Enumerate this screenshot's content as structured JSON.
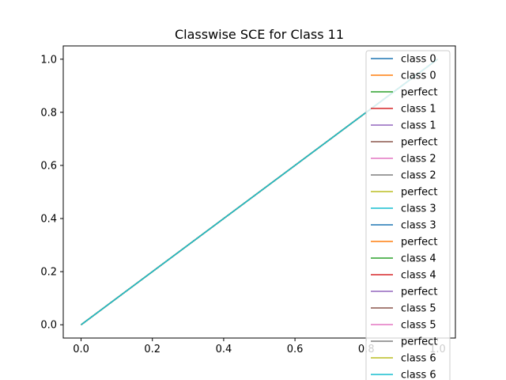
{
  "chart_data": {
    "type": "line",
    "title": "Classwise SCE for Class 11",
    "xlabel": "",
    "ylabel": "",
    "xlim": [
      -0.05,
      1.05
    ],
    "ylim": [
      -0.05,
      1.05
    ],
    "x_ticks": [
      0.0,
      0.2,
      0.4,
      0.6,
      0.8,
      1.0
    ],
    "x_tick_labels": [
      "0.0",
      "0.2",
      "0.4",
      "0.6",
      "0.8",
      "1.0"
    ],
    "y_ticks": [
      0.0,
      0.2,
      0.4,
      0.6,
      0.8,
      1.0
    ],
    "y_tick_labels": [
      "0.0",
      "0.2",
      "0.4",
      "0.6",
      "0.8",
      "1.0"
    ],
    "grid": false,
    "legend_position": "top-right",
    "series": [
      {
        "name": "class 0",
        "color": "#1f77b4",
        "x": [
          0,
          1
        ],
        "y": [
          0,
          1
        ]
      },
      {
        "name": "class 0",
        "color": "#ff7f0e",
        "x": [
          0,
          1
        ],
        "y": [
          0,
          1
        ]
      },
      {
        "name": "perfect",
        "color": "#2ca02c",
        "x": [
          0,
          1
        ],
        "y": [
          0,
          1
        ]
      },
      {
        "name": "class 1",
        "color": "#d62728",
        "x": [
          0,
          1
        ],
        "y": [
          0,
          1
        ]
      },
      {
        "name": "class 1",
        "color": "#9467bd",
        "x": [
          0,
          1
        ],
        "y": [
          0,
          1
        ]
      },
      {
        "name": "perfect",
        "color": "#8c564b",
        "x": [
          0,
          1
        ],
        "y": [
          0,
          1
        ]
      },
      {
        "name": "class 2",
        "color": "#e377c2",
        "x": [
          0,
          1
        ],
        "y": [
          0,
          1
        ]
      },
      {
        "name": "class 2",
        "color": "#7f7f7f",
        "x": [
          0,
          1
        ],
        "y": [
          0,
          1
        ]
      },
      {
        "name": "perfect",
        "color": "#bcbd22",
        "x": [
          0,
          1
        ],
        "y": [
          0,
          1
        ]
      },
      {
        "name": "class 3",
        "color": "#17becf",
        "x": [
          0,
          1
        ],
        "y": [
          0,
          1
        ]
      },
      {
        "name": "class 3",
        "color": "#1f77b4",
        "x": [
          0,
          1
        ],
        "y": [
          0,
          1
        ]
      },
      {
        "name": "perfect",
        "color": "#ff7f0e",
        "x": [
          0,
          1
        ],
        "y": [
          0,
          1
        ]
      },
      {
        "name": "class 4",
        "color": "#2ca02c",
        "x": [
          0,
          1
        ],
        "y": [
          0,
          1
        ]
      },
      {
        "name": "class 4",
        "color": "#d62728",
        "x": [
          0,
          1
        ],
        "y": [
          0,
          1
        ]
      },
      {
        "name": "perfect",
        "color": "#9467bd",
        "x": [
          0,
          1
        ],
        "y": [
          0,
          1
        ]
      },
      {
        "name": "class 5",
        "color": "#8c564b",
        "x": [
          0,
          1
        ],
        "y": [
          0,
          1
        ]
      },
      {
        "name": "class 5",
        "color": "#e377c2",
        "x": [
          0,
          1
        ],
        "y": [
          0,
          1
        ]
      },
      {
        "name": "perfect",
        "color": "#7f7f7f",
        "x": [
          0,
          1
        ],
        "y": [
          0,
          1
        ]
      },
      {
        "name": "class 6",
        "color": "#bcbd22",
        "x": [
          0,
          1
        ],
        "y": [
          0,
          1
        ]
      },
      {
        "name": "class 6",
        "color": "#17becf",
        "x": [
          0,
          1
        ],
        "y": [
          0,
          1
        ]
      }
    ]
  }
}
